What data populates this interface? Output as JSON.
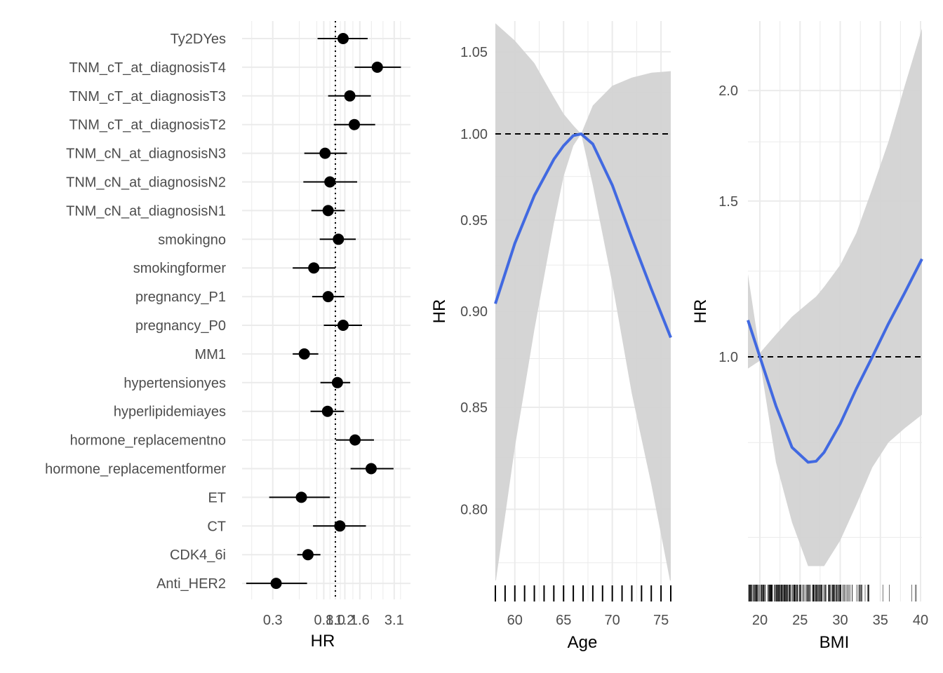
{
  "chart_data": [
    {
      "type": "scatter",
      "subtype": "forest",
      "title": "",
      "xlabel": "HR",
      "ylabel": "",
      "xscale": "log",
      "xlim": [
        0.2,
        3.6
      ],
      "xticks": [
        0.3,
        0.8,
        1.0,
        1.2,
        1.6,
        3.1
      ],
      "xtick_labels": [
        "0.3",
        "0.8",
        "1.0",
        "1.2",
        "1.6",
        "3.1"
      ],
      "reference_line": {
        "x": 1.0,
        "style": "dotted"
      },
      "grid": true,
      "terms": [
        {
          "label": "Ty2DYes",
          "hr": 1.16,
          "lower": 0.71,
          "upper": 1.86
        },
        {
          "label": "TNM_cT_at_diagnosisT4",
          "hr": 2.24,
          "lower": 1.45,
          "upper": 3.53
        },
        {
          "label": "TNM_cT_at_diagnosisT3",
          "hr": 1.32,
          "lower": 0.87,
          "upper": 1.98
        },
        {
          "label": "TNM_cT_at_diagnosisT2",
          "hr": 1.44,
          "lower": 0.97,
          "upper": 2.15
        },
        {
          "label": "TNM_cN_at_diagnosisN3",
          "hr": 0.82,
          "lower": 0.55,
          "upper": 1.25
        },
        {
          "label": "TNM_cN_at_diagnosisN2",
          "hr": 0.9,
          "lower": 0.54,
          "upper": 1.52
        },
        {
          "label": "TNM_cN_at_diagnosisN1",
          "hr": 0.87,
          "lower": 0.63,
          "upper": 1.2
        },
        {
          "label": "smokingno",
          "hr": 1.06,
          "lower": 0.74,
          "upper": 1.48
        },
        {
          "label": "smokingformer",
          "hr": 0.66,
          "lower": 0.44,
          "upper": 1.0
        },
        {
          "label": "pregnancy_P1",
          "hr": 0.87,
          "lower": 0.64,
          "upper": 1.19
        },
        {
          "label": "pregnancy_P0",
          "hr": 1.16,
          "lower": 0.8,
          "upper": 1.67
        },
        {
          "label": "MM1",
          "hr": 0.55,
          "lower": 0.44,
          "upper": 0.72
        },
        {
          "label": "hypertensionyes",
          "hr": 1.04,
          "lower": 0.75,
          "upper": 1.33
        },
        {
          "label": "hyperlipidemiayes",
          "hr": 0.86,
          "lower": 0.62,
          "upper": 1.18
        },
        {
          "label": "hormone_replacementno",
          "hr": 1.46,
          "lower": 1.01,
          "upper": 2.1
        },
        {
          "label": "hormone_replacementformer",
          "hr": 1.99,
          "lower": 1.34,
          "upper": 3.06
        },
        {
          "label": "ET",
          "hr": 0.52,
          "lower": 0.28,
          "upper": 0.9
        },
        {
          "label": "CT",
          "hr": 1.09,
          "lower": 0.65,
          "upper": 1.8
        },
        {
          "label": "CDK4_6i",
          "hr": 0.59,
          "lower": 0.48,
          "upper": 0.75
        },
        {
          "label": "Anti_HER2",
          "hr": 0.32,
          "lower": 0.18,
          "upper": 0.58
        }
      ]
    },
    {
      "type": "line",
      "title": "",
      "xlabel": "Age",
      "ylabel": "HR",
      "yscale": "log",
      "xlim": [
        58,
        76
      ],
      "ylim": [
        0.765,
        1.068
      ],
      "xticks": [
        60,
        65,
        70,
        75
      ],
      "yticks": [
        0.8,
        0.85,
        0.9,
        0.95,
        1.0,
        1.05
      ],
      "ytick_labels": [
        "0.80",
        "0.85",
        "0.90",
        "0.95",
        "1.00",
        "1.05"
      ],
      "reference_line": {
        "y": 1.0,
        "style": "dashed"
      },
      "line_color": "#4169e1",
      "band_color": "#d3d3d3",
      "grid": true,
      "series": [
        {
          "name": "HR",
          "x": [
            58,
            60,
            62,
            64,
            65,
            66,
            66.8,
            68,
            70,
            72,
            74,
            76
          ],
          "y": [
            0.904,
            0.937,
            0.964,
            0.985,
            0.993,
            0.999,
            1.0,
            0.994,
            0.97,
            0.94,
            0.912,
            0.886
          ]
        },
        {
          "name": "upper",
          "x": [
            58,
            60,
            62,
            64,
            65,
            66,
            66.8,
            68,
            70,
            72,
            74,
            76
          ],
          "y": [
            1.068,
            1.057,
            1.043,
            1.022,
            1.012,
            1.005,
            1.0,
            1.017,
            1.029,
            1.034,
            1.037,
            1.038
          ]
        },
        {
          "name": "lower",
          "x": [
            58,
            60,
            62,
            64,
            65,
            66,
            66.8,
            68,
            70,
            72,
            74,
            76
          ],
          "y": [
            0.765,
            0.83,
            0.89,
            0.948,
            0.975,
            0.993,
            1.0,
            0.97,
            0.915,
            0.857,
            0.812,
            0.765
          ]
        }
      ],
      "rug": [
        58,
        59,
        60,
        61,
        62,
        63,
        64,
        65,
        66,
        67,
        68,
        69,
        70,
        71,
        72,
        73,
        74,
        75,
        76
      ]
    },
    {
      "type": "line",
      "title": "",
      "xlabel": "BMI",
      "ylabel": "HR",
      "yscale": "log",
      "xlim": [
        18.5,
        40.2
      ],
      "ylim": [
        0.6,
        2.35
      ],
      "xticks": [
        20,
        25,
        30,
        35,
        40
      ],
      "yticks": [
        1.0,
        1.5,
        2.0
      ],
      "ytick_labels": [
        "1.0",
        "1.5",
        "2.0"
      ],
      "reference_line": {
        "y": 1.0,
        "style": "dashed"
      },
      "line_color": "#4169e1",
      "band_color": "#d3d3d3",
      "grid": true,
      "series": [
        {
          "name": "HR",
          "x": [
            18.5,
            20,
            22,
            24,
            26,
            27,
            28,
            30,
            32,
            34,
            36,
            38,
            40.2
          ],
          "y": [
            1.1,
            1.0,
            0.88,
            0.79,
            0.76,
            0.762,
            0.78,
            0.84,
            0.92,
            1.0,
            1.09,
            1.18,
            1.29
          ]
        },
        {
          "name": "upper",
          "x": [
            18.5,
            20,
            22,
            24,
            26,
            27,
            28,
            30,
            32,
            34,
            36,
            38,
            40.2
          ],
          "y": [
            1.24,
            1.01,
            1.06,
            1.11,
            1.15,
            1.17,
            1.2,
            1.27,
            1.38,
            1.55,
            1.75,
            2.02,
            2.35
          ]
        },
        {
          "name": "lower",
          "x": [
            18.5,
            20,
            22,
            24,
            26,
            27,
            28,
            30,
            32,
            34,
            36,
            38,
            40.2
          ],
          "y": [
            0.97,
            0.99,
            0.76,
            0.65,
            0.58,
            0.58,
            0.58,
            0.62,
            0.68,
            0.75,
            0.8,
            0.83,
            0.86
          ]
        }
      ],
      "rug_note": "dense rug of individual BMI values, most between 18.5 and 33"
    }
  ]
}
